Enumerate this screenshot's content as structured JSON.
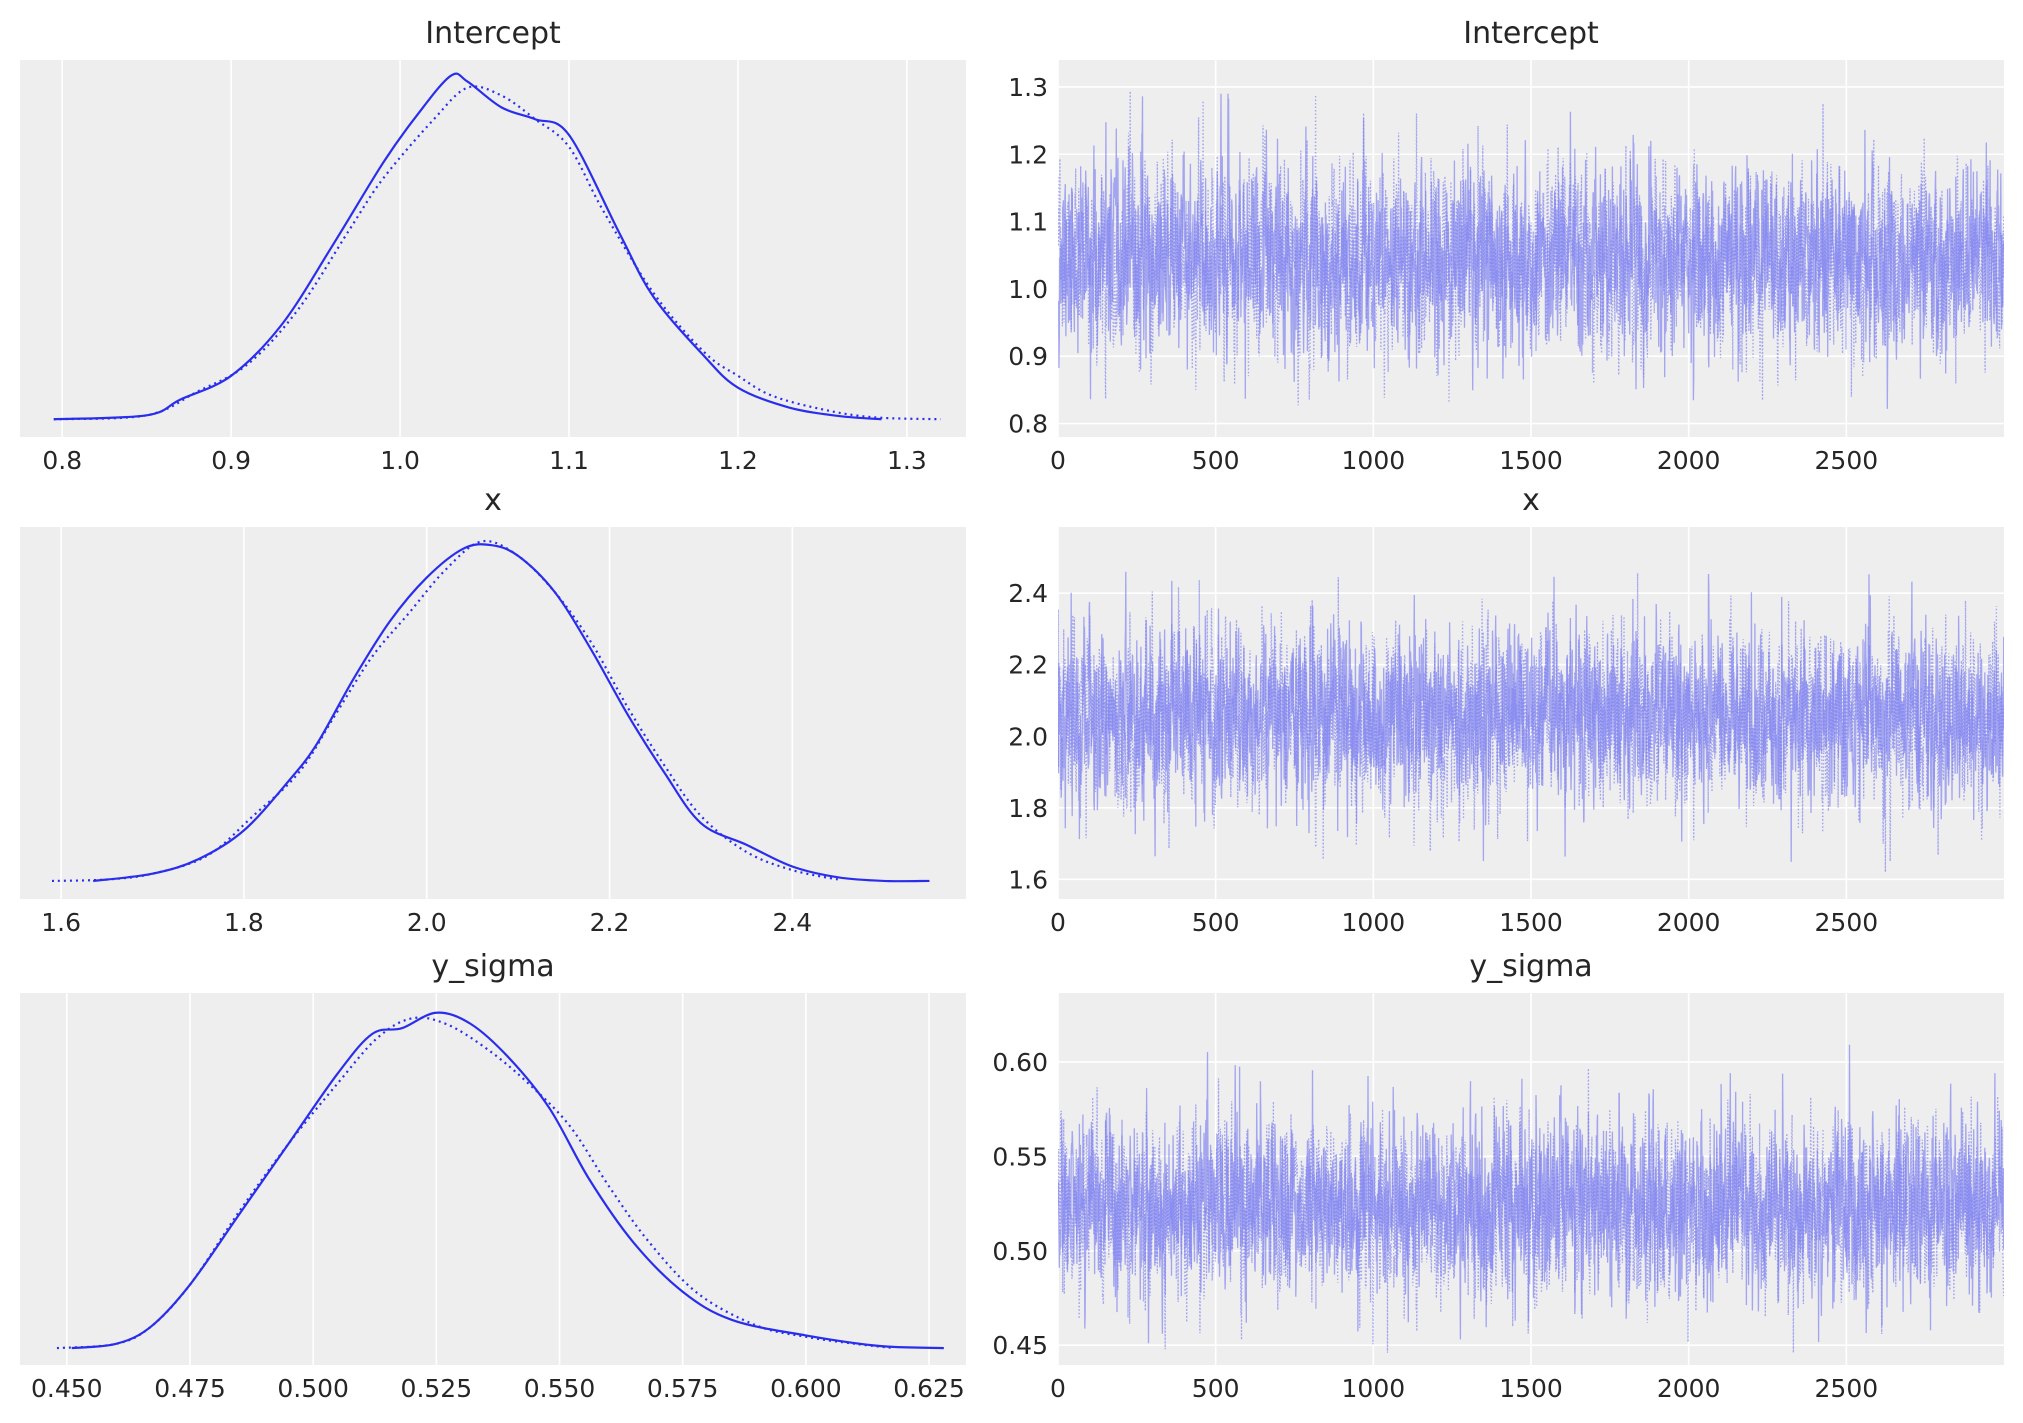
{
  "figure": {
    "background": "#ffffff",
    "panel_background": "#eeeeee",
    "grid_color": "#ffffff",
    "kde_color": "#2a2eec",
    "trace_color": "#7b7ef0",
    "kde_linestyles": [
      "solid",
      "dotted"
    ]
  },
  "chart_data": [
    {
      "id": "kde-intercept",
      "type": "line",
      "title": "Intercept",
      "xlabel": "",
      "ylabel": "",
      "xlim": [
        0.775,
        1.335
      ],
      "ylim": [
        -0.45,
        9.1
      ],
      "xticks": [
        0.8,
        0.9,
        1.0,
        1.1,
        1.2,
        1.3
      ],
      "xtick_labels": [
        "0.8",
        "0.9",
        "1.0",
        "1.1",
        "1.2",
        "1.3"
      ],
      "yticks": [],
      "grid": "vertical",
      "series": [
        {
          "style": "solid",
          "x": [
            0.795,
            0.85,
            0.87,
            0.9,
            0.93,
            0.96,
            0.99,
            1.01,
            1.03,
            1.04,
            1.06,
            1.08,
            1.1,
            1.13,
            1.15,
            1.18,
            1.2,
            1.23,
            1.26,
            1.285
          ],
          "values": [
            0.0,
            0.1,
            0.5,
            1.1,
            2.4,
            4.4,
            6.5,
            7.7,
            8.7,
            8.55,
            7.9,
            7.6,
            7.2,
            4.7,
            3.1,
            1.6,
            0.8,
            0.3,
            0.08,
            0.0
          ]
        },
        {
          "style": "dotted",
          "x": [
            0.795,
            0.85,
            0.88,
            0.91,
            0.94,
            0.97,
            0.99,
            1.02,
            1.04,
            1.06,
            1.08,
            1.1,
            1.12,
            1.15,
            1.18,
            1.2,
            1.22,
            1.25,
            1.28,
            1.32
          ],
          "values": [
            0.0,
            0.1,
            0.7,
            1.4,
            2.8,
            4.8,
            6.1,
            7.6,
            8.4,
            8.2,
            7.6,
            6.9,
            5.3,
            3.2,
            1.7,
            1.1,
            0.6,
            0.25,
            0.05,
            0.0
          ]
        }
      ]
    },
    {
      "id": "trace-intercept",
      "type": "line",
      "title": "Intercept",
      "xlabel": "",
      "ylabel": "",
      "xlim": [
        0,
        3000
      ],
      "ylim": [
        0.78,
        1.34
      ],
      "xticks": [
        0,
        500,
        1000,
        1500,
        2000,
        2500
      ],
      "xtick_labels": [
        "0",
        "500",
        "1000",
        "1500",
        "2000",
        "2500"
      ],
      "yticks": [
        0.8,
        0.9,
        1.0,
        1.1,
        1.2,
        1.3
      ],
      "ytick_labels": [
        "0.8",
        "0.9",
        "1.0",
        "1.1",
        "1.2",
        "1.3"
      ],
      "grid": "both",
      "n_draws": 3000,
      "series": [
        {
          "style": "solid",
          "mean": 1.045,
          "sd": 0.068,
          "seed": 11,
          "min": 0.795,
          "max": 1.29
        },
        {
          "style": "dotted",
          "mean": 1.04,
          "sd": 0.068,
          "seed": 23,
          "min": 0.8,
          "max": 1.325
        }
      ]
    },
    {
      "id": "kde-x",
      "type": "line",
      "title": "x",
      "xlabel": "",
      "ylabel": "",
      "xlim": [
        1.555,
        2.59
      ],
      "ylim": [
        -0.25,
        4.9
      ],
      "xticks": [
        1.6,
        1.8,
        2.0,
        2.2,
        2.4
      ],
      "xtick_labels": [
        "1.6",
        "1.8",
        "2.0",
        "2.2",
        "2.4"
      ],
      "yticks": [],
      "grid": "vertical",
      "series": [
        {
          "style": "solid",
          "x": [
            1.635,
            1.7,
            1.75,
            1.8,
            1.85,
            1.88,
            1.92,
            1.96,
            2.0,
            2.04,
            2.07,
            2.1,
            2.14,
            2.18,
            2.22,
            2.26,
            2.3,
            2.35,
            2.4,
            2.45,
            2.5,
            2.55
          ],
          "values": [
            0.0,
            0.1,
            0.3,
            0.7,
            1.4,
            1.9,
            2.8,
            3.6,
            4.2,
            4.6,
            4.65,
            4.5,
            4.0,
            3.2,
            2.3,
            1.5,
            0.8,
            0.5,
            0.2,
            0.05,
            0.0,
            0.0
          ]
        },
        {
          "style": "dotted",
          "x": [
            1.59,
            1.65,
            1.7,
            1.76,
            1.81,
            1.86,
            1.9,
            1.94,
            1.98,
            2.02,
            2.06,
            2.1,
            2.14,
            2.18,
            2.22,
            2.26,
            2.3,
            2.35,
            2.4,
            2.45
          ],
          "values": [
            0.0,
            0.02,
            0.1,
            0.35,
            0.9,
            1.5,
            2.3,
            3.1,
            3.7,
            4.3,
            4.7,
            4.5,
            4.0,
            3.3,
            2.4,
            1.6,
            0.9,
            0.4,
            0.15,
            0.02
          ]
        }
      ]
    },
    {
      "id": "trace-x",
      "type": "line",
      "title": "x",
      "xlabel": "",
      "ylabel": "",
      "xlim": [
        0,
        3000
      ],
      "ylim": [
        1.545,
        2.585
      ],
      "xticks": [
        0,
        500,
        1000,
        1500,
        2000,
        2500
      ],
      "xtick_labels": [
        "0",
        "500",
        "1000",
        "1500",
        "2000",
        "2500"
      ],
      "yticks": [
        1.6,
        1.8,
        2.0,
        2.2,
        2.4
      ],
      "ytick_labels": [
        "1.6",
        "1.8",
        "2.0",
        "2.2",
        "2.4"
      ],
      "grid": "both",
      "n_draws": 3000,
      "series": [
        {
          "style": "solid",
          "mean": 2.06,
          "sd": 0.12,
          "seed": 37,
          "min": 1.63,
          "max": 2.55
        },
        {
          "style": "dotted",
          "mean": 2.055,
          "sd": 0.12,
          "seed": 53,
          "min": 1.6,
          "max": 2.5
        }
      ]
    },
    {
      "id": "kde-y-sigma",
      "type": "line",
      "title": "y_sigma",
      "xlabel": "",
      "ylabel": "",
      "xlim": [
        0.4405,
        0.6325
      ],
      "ylim": [
        -1.2,
        25.2
      ],
      "xticks": [
        0.45,
        0.475,
        0.5,
        0.525,
        0.55,
        0.575,
        0.6,
        0.625
      ],
      "xtick_labels": [
        "0.450",
        "0.475",
        "0.500",
        "0.525",
        "0.550",
        "0.575",
        "0.600",
        "0.625"
      ],
      "yticks": [],
      "grid": "vertical",
      "series": [
        {
          "style": "solid",
          "x": [
            0.451,
            0.46,
            0.467,
            0.475,
            0.485,
            0.495,
            0.505,
            0.512,
            0.518,
            0.525,
            0.532,
            0.54,
            0.548,
            0.556,
            0.565,
            0.575,
            0.585,
            0.6,
            0.615,
            0.628
          ],
          "values": [
            0.0,
            0.3,
            1.5,
            4.5,
            9.5,
            14.5,
            19.5,
            22.3,
            22.7,
            23.8,
            23.0,
            20.5,
            17.0,
            12.0,
            7.5,
            4.0,
            2.0,
            0.9,
            0.15,
            0.0
          ]
        },
        {
          "style": "dotted",
          "x": [
            0.448,
            0.46,
            0.467,
            0.475,
            0.485,
            0.495,
            0.505,
            0.513,
            0.52,
            0.527,
            0.535,
            0.543,
            0.552,
            0.56,
            0.568,
            0.578,
            0.59,
            0.6,
            0.61,
            0.618
          ],
          "values": [
            0.0,
            0.3,
            1.5,
            4.5,
            9.7,
            14.5,
            18.8,
            22.0,
            23.4,
            23.0,
            21.3,
            19.0,
            15.8,
            11.5,
            7.6,
            3.9,
            1.6,
            0.8,
            0.3,
            0.0
          ]
        }
      ]
    },
    {
      "id": "trace-y-sigma",
      "type": "line",
      "title": "y_sigma",
      "xlabel": "",
      "ylabel": "",
      "xlim": [
        0,
        3000
      ],
      "ylim": [
        0.4395,
        0.6365
      ],
      "xticks": [
        0,
        500,
        1000,
        1500,
        2000,
        2500
      ],
      "xtick_labels": [
        "0",
        "500",
        "1000",
        "1500",
        "2000",
        "2500"
      ],
      "yticks": [
        0.45,
        0.5,
        0.55,
        0.6
      ],
      "ytick_labels": [
        "0.45",
        "0.50",
        "0.55",
        "0.60"
      ],
      "grid": "both",
      "n_draws": 3000,
      "series": [
        {
          "style": "solid",
          "mean": 0.525,
          "sd": 0.0225,
          "seed": 71,
          "min": 0.451,
          "max": 0.628
        },
        {
          "style": "dotted",
          "mean": 0.523,
          "sd": 0.0225,
          "seed": 89,
          "min": 0.446,
          "max": 0.618
        }
      ]
    }
  ]
}
